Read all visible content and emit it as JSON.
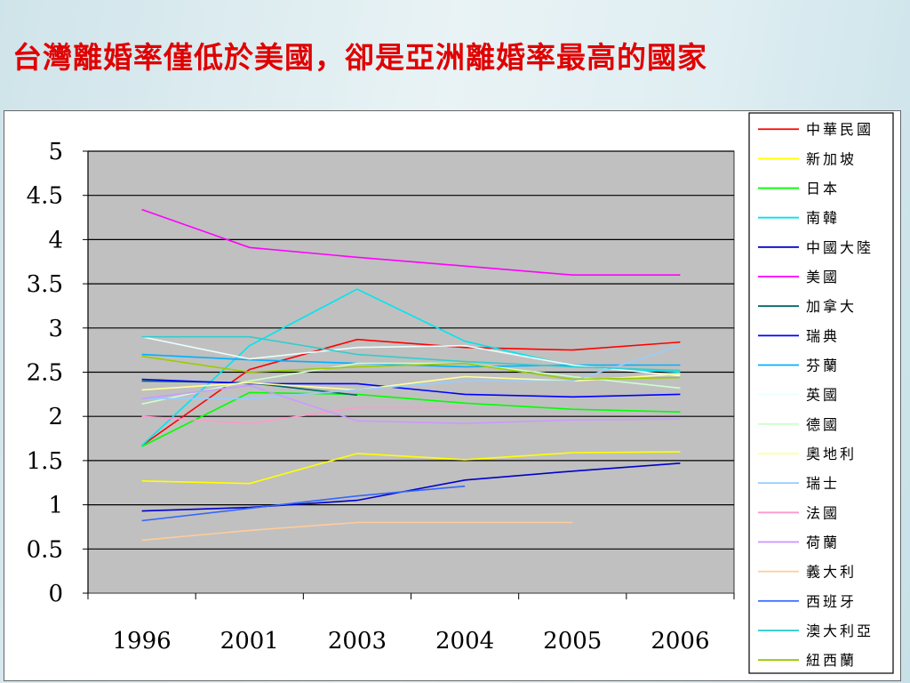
{
  "title": "台灣離婚率僅低於美國，卻是亞洲離婚率最高的國家",
  "chart_data": {
    "type": "line",
    "categories": [
      "1996",
      "2001",
      "2003",
      "2004",
      "2005",
      "2006"
    ],
    "ylim": [
      0,
      5
    ],
    "yticks": [
      "0",
      "0.5",
      "1",
      "1.5",
      "2",
      "2.5",
      "3",
      "3.5",
      "4",
      "4.5",
      "5"
    ],
    "grid": true,
    "legend_position": "right",
    "series": [
      {
        "name": "中華民國",
        "color": "#ff0000",
        "values": [
          1.67,
          2.53,
          2.87,
          2.78,
          2.75,
          2.84
        ]
      },
      {
        "name": "新加坡",
        "color": "#ffff00",
        "values": [
          1.27,
          1.24,
          1.58,
          1.51,
          1.59,
          1.6
        ]
      },
      {
        "name": "日本",
        "color": "#00ff00",
        "values": [
          1.66,
          2.27,
          2.25,
          2.15,
          2.08,
          2.05
        ]
      },
      {
        "name": "南韓",
        "color": "#00e5ee",
        "values": [
          1.67,
          2.8,
          3.44,
          2.85,
          2.57,
          2.5
        ]
      },
      {
        "name": "中國大陸",
        "color": "#0000cc",
        "values": [
          0.93,
          0.97,
          1.05,
          1.28,
          1.38,
          1.47
        ]
      },
      {
        "name": "美國",
        "color": "#ff00ff",
        "values": [
          4.34,
          3.91,
          3.8,
          3.7,
          3.6,
          3.6
        ]
      },
      {
        "name": "加拿大",
        "color": "#006666",
        "values": [
          2.4,
          2.38,
          2.24,
          null,
          null,
          null
        ]
      },
      {
        "name": "瑞典",
        "color": "#0000ff",
        "values": [
          2.42,
          2.37,
          2.37,
          2.25,
          2.22,
          2.25
        ]
      },
      {
        "name": "芬蘭",
        "color": "#00b0ff",
        "values": [
          2.7,
          2.64,
          2.6,
          2.56,
          2.58,
          2.58
        ]
      },
      {
        "name": "英國",
        "color": "#e8ffff",
        "values": [
          2.9,
          2.65,
          2.78,
          2.8,
          2.58,
          2.46
        ]
      },
      {
        "name": "德國",
        "color": "#ccffcc",
        "values": [
          2.14,
          2.4,
          2.6,
          2.6,
          2.45,
          2.32
        ]
      },
      {
        "name": "奧地利",
        "color": "#ffff99",
        "values": [
          2.3,
          2.38,
          2.3,
          2.45,
          2.4,
          2.48
        ]
      },
      {
        "name": "瑞士",
        "color": "#99ccff",
        "values": [
          2.2,
          2.2,
          2.3,
          2.4,
          2.4,
          2.8
        ]
      },
      {
        "name": "法國",
        "color": "#ff99cc",
        "values": [
          2.0,
          1.92,
          2.1,
          2.1,
          null,
          null
        ]
      },
      {
        "name": "荷蘭",
        "color": "#cc99ff",
        "values": [
          2.2,
          2.35,
          1.95,
          1.92,
          1.96,
          1.97
        ]
      },
      {
        "name": "義大利",
        "color": "#ffcc99",
        "values": [
          0.6,
          0.71,
          0.8,
          0.8,
          0.8,
          null
        ]
      },
      {
        "name": "西班牙",
        "color": "#3366ff",
        "values": [
          0.82,
          0.96,
          1.1,
          1.21,
          null,
          null
        ]
      },
      {
        "name": "澳大利亞",
        "color": "#33cccc",
        "values": [
          2.9,
          2.9,
          2.7,
          2.62,
          2.56,
          2.52
        ]
      },
      {
        "name": "紐西蘭",
        "color": "#99cc00",
        "values": [
          2.68,
          2.5,
          2.56,
          2.6,
          2.42,
          2.44
        ]
      }
    ]
  }
}
